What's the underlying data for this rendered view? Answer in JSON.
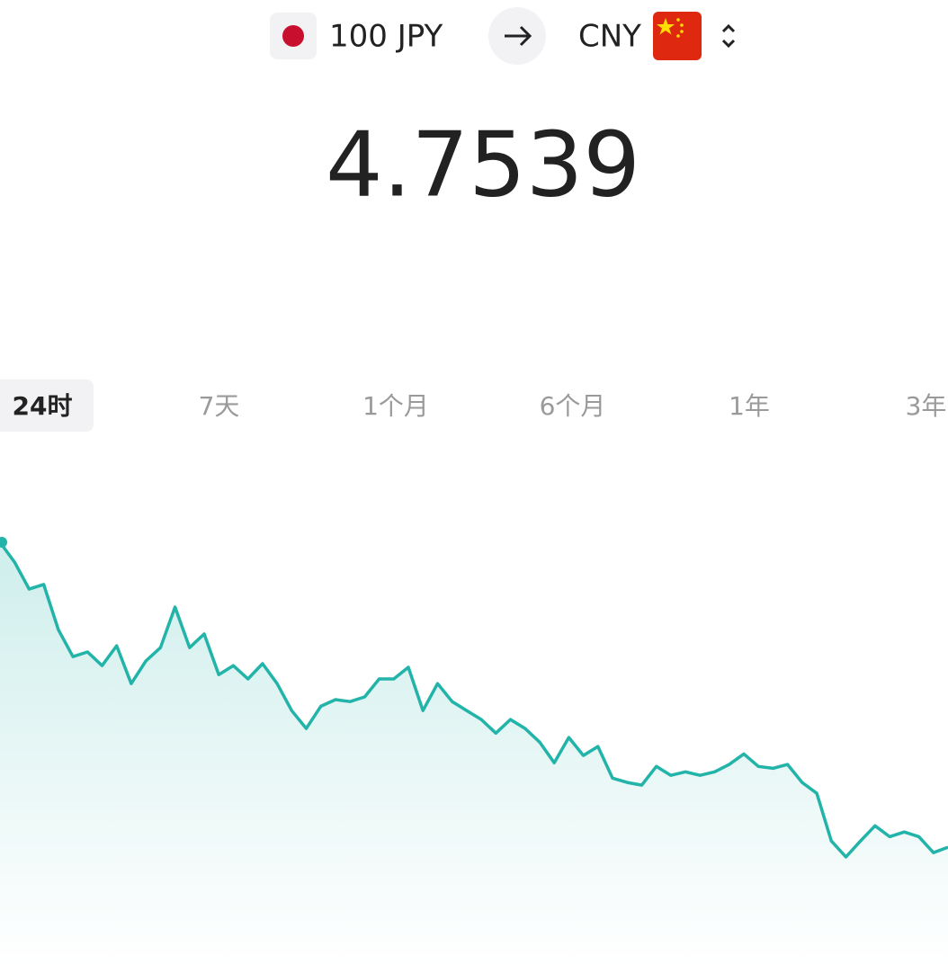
{
  "header": {
    "from_amount": "100 JPY",
    "to_currency": "CNY"
  },
  "rate": "4.7539",
  "tabs": [
    "24时",
    "7天",
    "1个月",
    "6个月",
    "1年",
    "3年"
  ],
  "active_tab": 0,
  "chart_data": {
    "type": "line",
    "color": "#22b3a9",
    "values": [
      4.83,
      4.8249,
      4.818,
      4.8192,
      4.8076,
      4.8007,
      4.8019,
      4.7984,
      4.8035,
      4.7938,
      4.7996,
      4.803,
      4.8134,
      4.803,
      4.8065,
      4.7961,
      4.7984,
      4.795,
      4.7989,
      4.7938,
      4.7869,
      4.7823,
      4.788,
      4.7897,
      4.7892,
      4.7904,
      4.795,
      4.795,
      4.798,
      4.7869,
      4.7938,
      4.7892,
      4.7869,
      4.7846,
      4.7811,
      4.7846,
      4.7823,
      4.7788,
      4.7735,
      4.78,
      4.7754,
      4.7777,
      4.7696,
      4.7685,
      4.7678,
      4.7726,
      4.7703,
      4.7712,
      4.7703,
      4.7712,
      4.7731,
      4.7758,
      4.7726,
      4.7721,
      4.7731,
      4.7685,
      4.7657,
      4.7535,
      4.7494,
      4.7535,
      4.7574,
      4.7546,
      4.7558,
      4.7546,
      4.7505,
      4.7519
    ]
  }
}
